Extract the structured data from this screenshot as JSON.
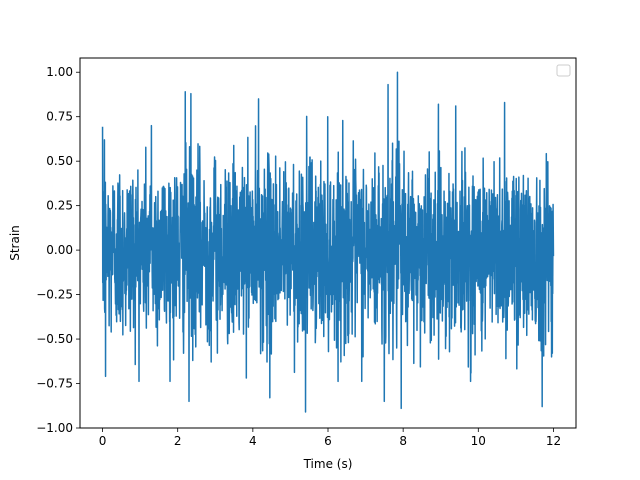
{
  "chart_data": {
    "type": "line",
    "title": "",
    "xlabel": "Time (s)",
    "ylabel": "Strain",
    "xlim": [
      -0.6,
      12.6
    ],
    "ylim": [
      -1.0,
      1.08
    ],
    "xticks": [
      0,
      2,
      4,
      6,
      8,
      10,
      12
    ],
    "xtick_labels": [
      "0",
      "2",
      "4",
      "6",
      "8",
      "10",
      "12"
    ],
    "yticks": [
      -1.0,
      -0.75,
      -0.5,
      -0.25,
      0.0,
      0.25,
      0.5,
      0.75,
      1.0
    ],
    "ytick_labels": [
      "−1.00",
      "−0.75",
      "−0.50",
      "−0.25",
      "0.00",
      "0.25",
      "0.50",
      "0.75",
      "1.00"
    ],
    "grid": false,
    "legend": {
      "placement": "top-right",
      "entries": []
    },
    "series": [
      {
        "color": "#1f77b4",
        "description": "noisy strain signal, approx. zero-mean random noise, std ~0.25",
        "x_start": 0,
        "x_end": 12,
        "sample_count": 2400,
        "y_min": -0.9,
        "y_max": 1.0,
        "peaks": [
          {
            "x": 0.05,
            "y": 0.62
          },
          {
            "x": 0.08,
            "y": -0.71
          },
          {
            "x": 1.3,
            "y": 0.7
          },
          {
            "x": 2.2,
            "y": 0.89
          },
          {
            "x": 2.35,
            "y": 0.88
          },
          {
            "x": 2.3,
            "y": -0.85
          },
          {
            "x": 4.15,
            "y": 0.85
          },
          {
            "x": 4.45,
            "y": -0.83
          },
          {
            "x": 5.4,
            "y": -0.91
          },
          {
            "x": 7.6,
            "y": 0.93
          },
          {
            "x": 7.85,
            "y": 1.0
          },
          {
            "x": 7.95,
            "y": -0.89
          },
          {
            "x": 7.5,
            "y": -0.85
          },
          {
            "x": 9.4,
            "y": 0.81
          },
          {
            "x": 10.7,
            "y": 0.83
          },
          {
            "x": 11.7,
            "y": -0.88
          },
          {
            "x": 11.95,
            "y": -0.6
          }
        ]
      }
    ]
  }
}
